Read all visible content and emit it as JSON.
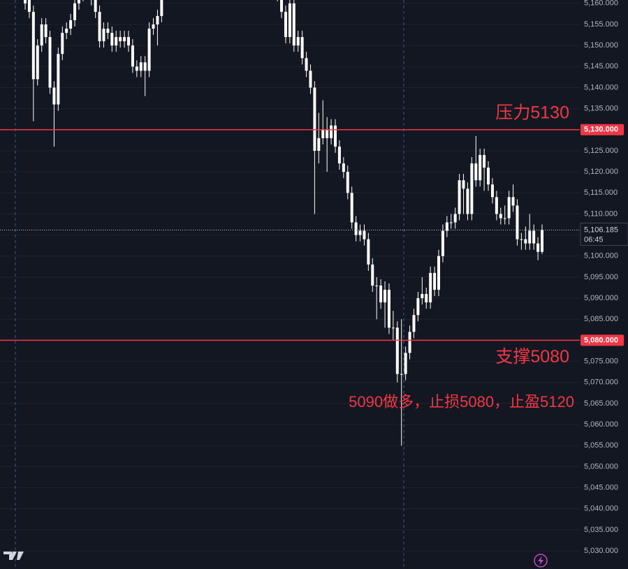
{
  "chart_data": {
    "type": "candlestick",
    "open": [
      5160,
      5162,
      5158,
      5142,
      5150,
      5155,
      5152,
      5140,
      5136,
      5148,
      5153,
      5154,
      5156,
      5160,
      5162,
      5163,
      5164,
      5161,
      5158,
      5151,
      5154,
      5153,
      5150,
      5152,
      5151,
      5152,
      5150,
      5145,
      5144,
      5146,
      5144,
      5154,
      5155,
      5157,
      null,
      null,
      null,
      null,
      null,
      null,
      null,
      null,
      null,
      null,
      null,
      null,
      null,
      null,
      null,
      null,
      null,
      null,
      null,
      null,
      null,
      null,
      null,
      null,
      null,
      null,
      null,
      5165,
      5162,
      5158,
      5152,
      5160,
      5150,
      5152,
      5147,
      5144,
      5140,
      5125,
      5128,
      5130,
      5128,
      5131,
      5126,
      5122,
      5120,
      5115,
      5108,
      5105,
      5106,
      5104,
      5098,
      5093,
      5093,
      5089,
      5092,
      5083,
      5083,
      5072,
      5072,
      5077,
      5082,
      5086,
      5090,
      5091,
      5089,
      5096,
      5092,
      5100,
      5106,
      5108,
      5108,
      5110,
      5118,
      5116,
      5110,
      5122,
      5118,
      5124,
      5121,
      5117,
      5114,
      5110,
      5109,
      5109,
      5114,
      5112,
      5104,
      5104,
      5103,
      5106,
      5103,
      5101
    ],
    "high": [
      5163.5,
      5163.5,
      5159.5,
      5151.5,
      5156.5,
      5156.5,
      5153.5,
      5141.5,
      5149.5,
      5154.5,
      5155.5,
      5157.5,
      5161.5,
      5163.5,
      5164.5,
      5165.5,
      5165.5,
      5162.5,
      5159.5,
      5155.5,
      5155.5,
      5154.5,
      5153.5,
      5153.5,
      5153.5,
      5153.5,
      5151.5,
      5146.5,
      5147.5,
      5147.5,
      5155.5,
      5156.5,
      5158.5,
      5162.5,
      null,
      null,
      null,
      null,
      null,
      null,
      null,
      null,
      null,
      null,
      null,
      null,
      null,
      null,
      null,
      null,
      null,
      null,
      null,
      null,
      null,
      null,
      null,
      null,
      null,
      null,
      null,
      5166.5,
      5163.5,
      5159.5,
      5161.5,
      5161.5,
      5153.5,
      5153.5,
      5148.5,
      5145.5,
      5141.5,
      5134,
      5137,
      5133,
      5132.5,
      5132.5,
      5127.5,
      5123.5,
      5121.5,
      5116.5,
      5109.5,
      5107.5,
      5107.5,
      5105.5,
      5099.5,
      5095,
      5094.5,
      5094,
      5093.5,
      5087,
      5084.5,
      5085,
      5078.5,
      5083.5,
      5087.5,
      5091.5,
      5095,
      5092.5,
      5097.5,
      5097.5,
      5101.5,
      5107.5,
      5109.5,
      5110,
      5111.5,
      5119.5,
      5119.5,
      5117.5,
      5123.5,
      5128.5,
      5125.5,
      5125.5,
      5122.5,
      5118.5,
      5115.5,
      5111.5,
      5112,
      5115.5,
      5117,
      5113.5,
      5105.5,
      5107,
      5110,
      5107.5,
      5104.5,
      5107.5
    ],
    "low": [
      5158.5,
      5156.5,
      5132,
      5140.5,
      5148.5,
      5150.5,
      5138.5,
      5126,
      5134.5,
      5146.5,
      5151.5,
      5152.5,
      5154.5,
      5158.5,
      5160.5,
      5161.5,
      5159.5,
      5156.5,
      5149.5,
      5149.5,
      5151.5,
      5148.5,
      5148.5,
      5149.5,
      5149.5,
      5148.5,
      5143.5,
      5142.5,
      5142.5,
      5138,
      5142.5,
      5152.5,
      5150,
      5155.5,
      null,
      null,
      null,
      null,
      null,
      null,
      null,
      null,
      null,
      null,
      null,
      null,
      null,
      null,
      null,
      null,
      null,
      null,
      null,
      null,
      null,
      null,
      null,
      null,
      null,
      null,
      null,
      5160.5,
      5156.5,
      5150.5,
      5150.5,
      5148.5,
      5148.5,
      5145.5,
      5142.5,
      5138.5,
      5110,
      5122,
      5126.5,
      5120,
      5126.5,
      5124.5,
      5120.5,
      5118.5,
      5113.5,
      5106.5,
      5103.5,
      5103.5,
      5102.5,
      5096.5,
      5091.5,
      5085,
      5087.5,
      5083,
      5081.5,
      5080,
      5070,
      5055,
      5070.5,
      5075.5,
      5080.5,
      5084.5,
      5088.5,
      5087.5,
      5087.5,
      5090.5,
      5090.5,
      5098.5,
      5104.5,
      5106.5,
      5106.5,
      5108.5,
      5110,
      5108.5,
      5108.5,
      5116.5,
      5116.5,
      5115.5,
      5115.5,
      5112.5,
      5108.5,
      5107.5,
      5107.5,
      5107.5,
      5110.5,
      5102.5,
      5101.5,
      5101.5,
      5101.5,
      5101.5,
      5099,
      5100.5
    ],
    "close": [
      5162,
      5158,
      5142,
      5150,
      5155,
      5152,
      5140,
      5136,
      5148,
      5153,
      5154,
      5156,
      5160,
      5162,
      5163,
      5164,
      5161,
      5158,
      5151,
      5154,
      5153,
      5150,
      5152,
      5151,
      5152,
      5150,
      5145,
      5144,
      5146,
      5144,
      5154,
      5155,
      5157,
      5161,
      null,
      null,
      null,
      null,
      null,
      null,
      null,
      null,
      null,
      null,
      null,
      null,
      null,
      null,
      null,
      null,
      null,
      null,
      null,
      null,
      null,
      null,
      null,
      null,
      null,
      null,
      null,
      5162,
      5158,
      5152,
      5160,
      5150,
      5152,
      5147,
      5144,
      5140,
      5125,
      5128,
      5130,
      5128,
      5131,
      5126,
      5122,
      5120,
      5115,
      5108,
      5105,
      5106,
      5104,
      5098,
      5093,
      5093,
      5089,
      5092,
      5083,
      5083,
      5072,
      5072,
      5077,
      5082,
      5086,
      5090,
      5091,
      5089,
      5096,
      5092,
      5100,
      5106,
      5108,
      5108,
      5110,
      5118,
      5116,
      5110,
      5122,
      5118,
      5124,
      5121,
      5117,
      5114,
      5110,
      5109,
      5109,
      5114,
      5112,
      5104,
      5104,
      5103,
      5106,
      5103,
      5101,
      5106.185
    ],
    "color": "#ffffff",
    "ylim": [
      5025.7,
      5160.8
    ],
    "yticks": [
      {
        "value": 5030,
        "label": "5,030.000"
      },
      {
        "value": 5035,
        "label": "5,035.000"
      },
      {
        "value": 5040,
        "label": "5,040.000"
      },
      {
        "value": 5045,
        "label": "5,045.000"
      },
      {
        "value": 5050,
        "label": "5,050.000"
      },
      {
        "value": 5055,
        "label": "5,055.000"
      },
      {
        "value": 5060,
        "label": "5,060.000"
      },
      {
        "value": 5065,
        "label": "5,065.000"
      },
      {
        "value": 5070,
        "label": "5,070.000"
      },
      {
        "value": 5075,
        "label": "5,075.000"
      },
      {
        "value": 5080,
        "label": "5,080.000"
      },
      {
        "value": 5085,
        "label": "5,085.000"
      },
      {
        "value": 5090,
        "label": "5,090.000"
      },
      {
        "value": 5095,
        "label": "5,095.000"
      },
      {
        "value": 5100,
        "label": "5,100.000"
      },
      {
        "value": 5105,
        "label": "5,105.000"
      },
      {
        "value": 5110,
        "label": "5,110.000"
      },
      {
        "value": 5115,
        "label": "5,115.000"
      },
      {
        "value": 5120,
        "label": "5,120.000"
      },
      {
        "value": 5125,
        "label": "5,125.000"
      },
      {
        "value": 5130,
        "label": "5,130.000"
      },
      {
        "value": 5135,
        "label": "5,135.000"
      },
      {
        "value": 5140,
        "label": "5,140.000"
      },
      {
        "value": 5145,
        "label": "5,145.000"
      },
      {
        "value": 5150,
        "label": "5,150.000"
      },
      {
        "value": 5155,
        "label": "5,155.000"
      },
      {
        "value": 5160,
        "label": "5,160.000"
      }
    ],
    "grid": true,
    "hlines": [
      {
        "value": 5130,
        "label": "5,130.000",
        "text": "压力5130",
        "color": "#f23645"
      },
      {
        "value": 5080,
        "label": "5,080.000",
        "text": "支撑5080",
        "color": "#f23645"
      }
    ],
    "last_price": {
      "value": 5106.185,
      "label": "5,106.185"
    },
    "countdown": "06:45",
    "annotation": "5090做多，止损5080，止盈5120"
  }
}
